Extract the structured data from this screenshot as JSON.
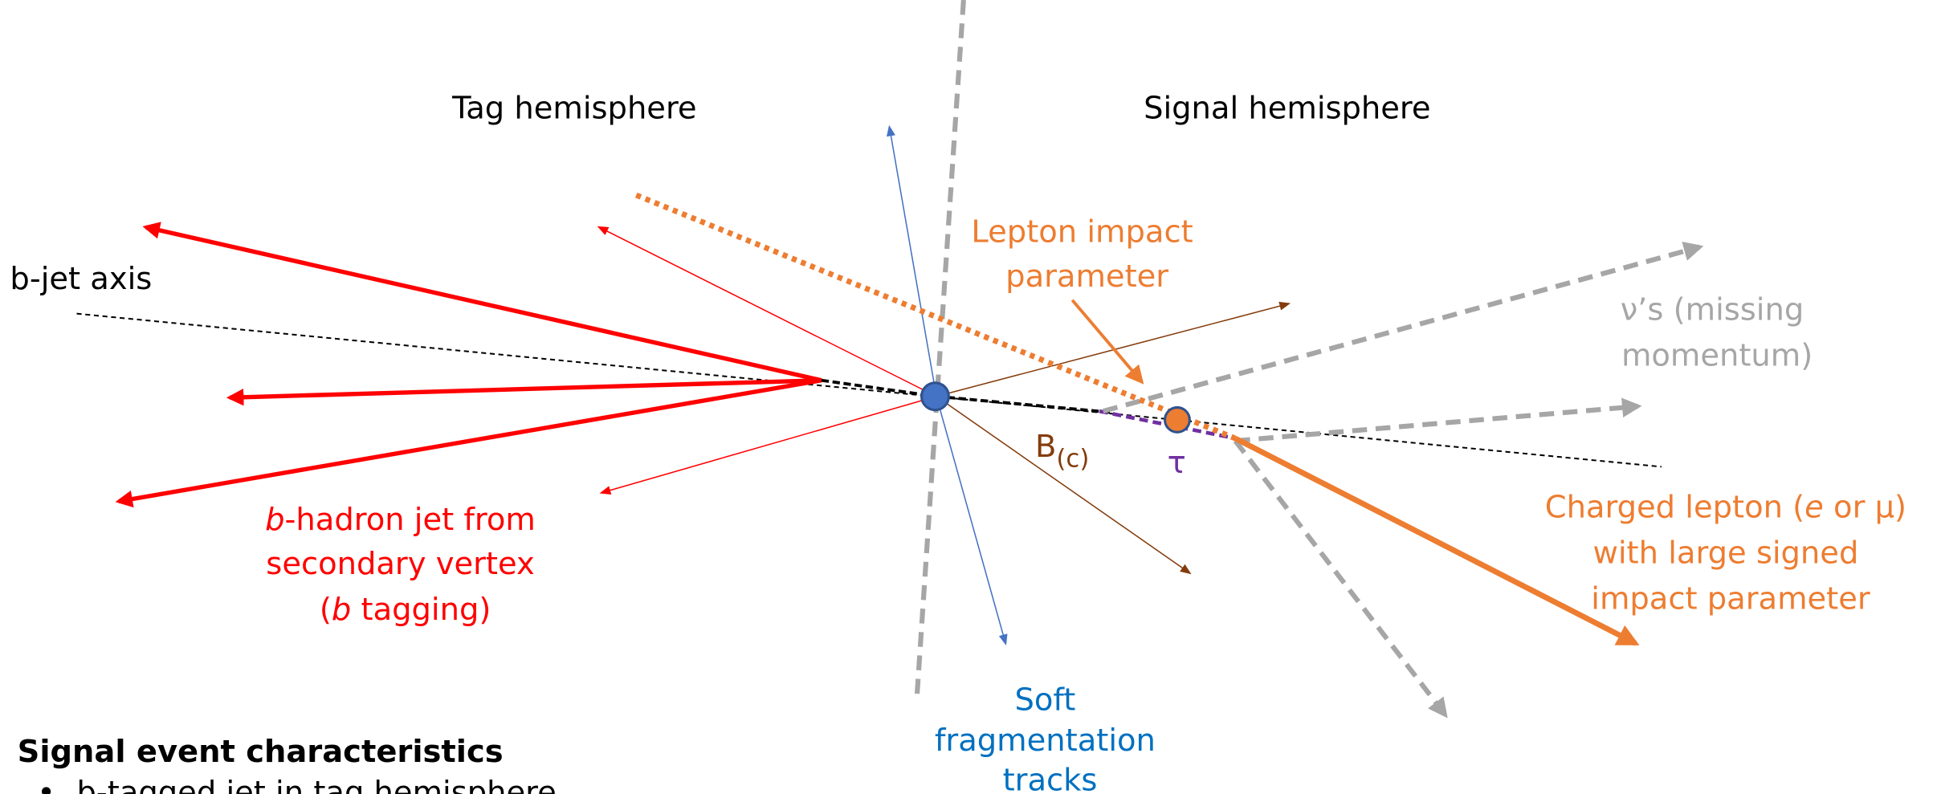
{
  "labels": {
    "tag_hemisphere": "Tag hemisphere",
    "signal_hemisphere": "Signal hemisphere",
    "b_jet_axis": "b-jet axis",
    "lepton_impact_parameter": [
      "Lepton impact",
      "parameter"
    ],
    "neutrinos": [
      "ν’s (missing",
      "momentum)"
    ],
    "b_c": {
      "base": "B",
      "sub": "(c)"
    },
    "tau": "τ",
    "b_hadron_jet": [
      [
        "b",
        "-hadron jet from"
      ],
      [
        "secondary vertex"
      ],
      [
        "(",
        "b",
        " tagging)"
      ]
    ],
    "charged_lepton": [
      [
        "Charged lepton (",
        "e",
        " or μ)"
      ],
      [
        "with large signed"
      ],
      [
        "impact parameter"
      ]
    ],
    "soft_tracks": [
      "Soft",
      "fragmentation",
      "tracks"
    ]
  },
  "characteristics": {
    "title": "Signal event characteristics",
    "items": [
      "b-tagged jet in tag hemisphere"
    ]
  }
}
